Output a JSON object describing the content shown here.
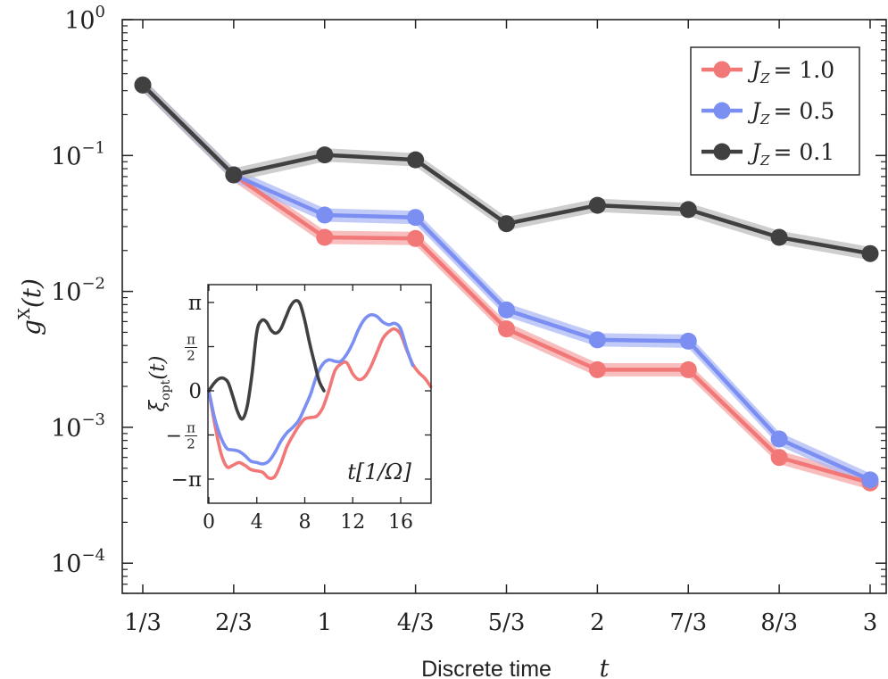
{
  "chart_data": [
    {
      "type": "line",
      "xlabel_text": "Discrete time",
      "xlabel_symbol": "t",
      "ylabel_base": "g",
      "ylabel_sup": "X",
      "ylabel_arg": "(t)",
      "x_ticks": [
        "1/3",
        "2/3",
        "1",
        "4/3",
        "5/3",
        "2",
        "7/3",
        "8/3",
        "3"
      ],
      "x": [
        0.3333,
        0.6667,
        1.0,
        1.3333,
        1.6667,
        2.0,
        2.3333,
        2.6667,
        3.0
      ],
      "y_scale": "log",
      "ylim": [
        6e-05,
        1
      ],
      "y_ticks": [
        {
          "value": 1,
          "base": "10",
          "exp": "0"
        },
        {
          "value": 0.1,
          "base": "10",
          "exp": "−1"
        },
        {
          "value": 0.01,
          "base": "10",
          "exp": "−2"
        },
        {
          "value": 0.001,
          "base": "10",
          "exp": "−3"
        },
        {
          "value": 0.0001,
          "base": "10",
          "exp": "−4"
        }
      ],
      "legend_position": "top-right",
      "series": [
        {
          "name": "J_Z = 1.0",
          "legend_sym": "J",
          "legend_sub": "Z",
          "legend_val": "= 1.0",
          "color": "#f27878",
          "band_color": "#f6a8a8",
          "values": [
            0.33,
            0.072,
            0.025,
            0.0245,
            0.0053,
            0.00265,
            0.00265,
            0.0006,
            0.00039
          ],
          "band": 0.12
        },
        {
          "name": "J_Z = 0.5",
          "legend_sym": "J",
          "legend_sub": "Z",
          "legend_val": "= 0.5",
          "color": "#7b8ff2",
          "band_color": "#aebaf6",
          "values": [
            0.33,
            0.072,
            0.0365,
            0.035,
            0.0073,
            0.0044,
            0.0043,
            0.00082,
            0.00041
          ],
          "band": 0.12
        },
        {
          "name": "J_Z = 0.1",
          "legend_sym": "J",
          "legend_sub": "Z",
          "legend_val": "= 0.1",
          "color": "#404040",
          "band_color": "#bdbdbd",
          "values": [
            0.33,
            0.072,
            0.101,
            0.093,
            0.0315,
            0.043,
            0.04,
            0.025,
            0.019
          ],
          "band": 0.12
        }
      ]
    },
    {
      "type": "line",
      "inset": true,
      "ylabel": "ξ_opt(t)",
      "ylabel_sym": "ξ",
      "ylabel_sub": "opt",
      "ylabel_arg": "(t)",
      "xlabel": "t[1/Ω]",
      "xlim": [
        0,
        18.5
      ],
      "ylim": [
        -3.5,
        3.6
      ],
      "x_ticks": [
        "0",
        "4",
        "8",
        "12",
        "16"
      ],
      "x_tick_values": [
        0,
        4,
        8,
        12,
        16
      ],
      "y_ticks": [
        {
          "value": 3.1416,
          "label": "π"
        },
        {
          "value": 1.5708,
          "num": "π",
          "den": "2"
        },
        {
          "value": 0,
          "label": "0"
        },
        {
          "value": -1.5708,
          "sign": "−",
          "num": "π",
          "den": "2"
        },
        {
          "value": -3.1416,
          "label": "−π"
        }
      ],
      "series": [
        {
          "name": "J_Z = 1.0",
          "color": "#f27878",
          "x": [
            0,
            0.5,
            1,
            1.5,
            2,
            2.5,
            3,
            3.5,
            4,
            4.5,
            5,
            5.5,
            6,
            6.5,
            7,
            7.5,
            8,
            8.5,
            9,
            9.5,
            10,
            10.5,
            11,
            11.5,
            12,
            12.5,
            13,
            13.5,
            14,
            14.5,
            15,
            15.5,
            16,
            16.5,
            17,
            17.5,
            18,
            18.5
          ],
          "y": [
            0,
            -1.2,
            -2.2,
            -2.7,
            -2.65,
            -2.55,
            -2.65,
            -2.8,
            -2.85,
            -2.9,
            -3.1,
            -3.05,
            -2.6,
            -2.0,
            -1.6,
            -1.25,
            -1.0,
            -0.95,
            -0.9,
            -0.6,
            0.0,
            0.7,
            0.95,
            1.0,
            0.6,
            0.4,
            0.5,
            0.85,
            1.35,
            1.85,
            2.1,
            2.2,
            2.0,
            1.45,
            0.95,
            0.65,
            0.45,
            0.15
          ]
        },
        {
          "name": "J_Z = 0.5",
          "color": "#7b8ff2",
          "x": [
            0,
            0.5,
            1,
            1.5,
            2,
            2.5,
            3,
            3.5,
            4,
            4.5,
            5,
            5.5,
            6,
            6.5,
            7,
            7.5,
            8,
            8.5,
            9,
            9.5,
            10,
            10.5,
            11,
            11.5,
            12,
            12.5,
            13,
            13.5,
            14,
            14.5,
            15,
            15.5,
            16,
            16.5,
            17
          ],
          "y": [
            0,
            -1.0,
            -1.65,
            -2.05,
            -2.1,
            -2.15,
            -2.3,
            -2.5,
            -2.55,
            -2.6,
            -2.5,
            -2.2,
            -1.8,
            -1.5,
            -1.3,
            -1.05,
            -0.6,
            -0.1,
            0.55,
            0.95,
            1.1,
            1.05,
            1.05,
            1.3,
            1.7,
            2.2,
            2.55,
            2.7,
            2.65,
            2.45,
            2.35,
            2.4,
            2.2,
            1.5,
            0.9
          ]
        },
        {
          "name": "J_Z = 0.1",
          "color": "#404040",
          "x": [
            0,
            0.4,
            0.8,
            1.2,
            1.6,
            2,
            2.4,
            2.8,
            3.2,
            3.6,
            4,
            4.4,
            4.8,
            5.2,
            5.6,
            6,
            6.4,
            6.8,
            7.2,
            7.6,
            8,
            8.4,
            8.8,
            9.2,
            9.6
          ],
          "y": [
            0,
            0.25,
            0.42,
            0.45,
            0.3,
            -0.2,
            -0.75,
            -1.0,
            -0.55,
            0.6,
            2.1,
            2.5,
            2.45,
            2.15,
            2.05,
            2.2,
            2.6,
            3.0,
            3.2,
            3.1,
            2.5,
            1.7,
            1.0,
            0.35,
            0.0
          ]
        }
      ]
    }
  ]
}
